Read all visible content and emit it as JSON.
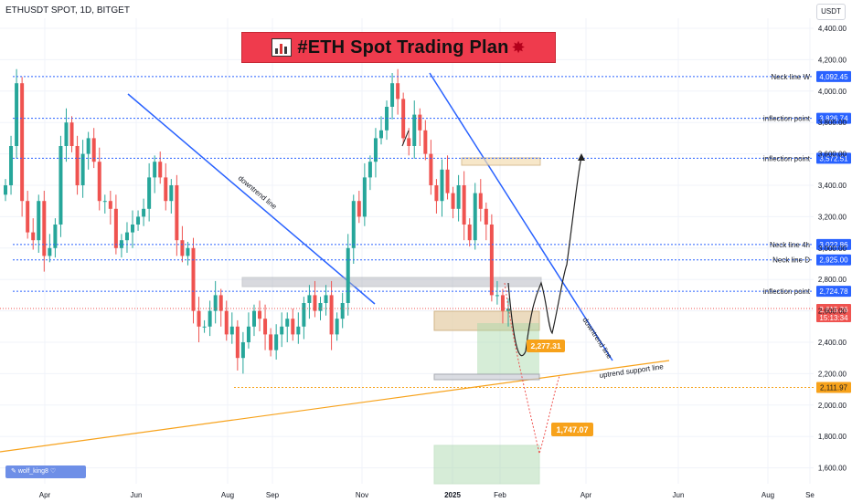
{
  "header": {
    "ticker": "ETHUSDT SPOT, 1D, BITGET",
    "currency": "USDT",
    "banner_title": "#ETH Spot Trading Plan",
    "author": "wolf_king8"
  },
  "colors": {
    "up": "#26a69a",
    "down": "#ef5350",
    "trendline": "#2962ff",
    "support": "#f7a21b",
    "banner": "#ef3b4d",
    "label_blue": "#2962ff",
    "label_orange": "#f7a21b"
  },
  "chart_data": {
    "type": "candlestick",
    "ylim": [
      1560,
      4500
    ],
    "x_ticks": [
      "Apr",
      "Jun",
      "Aug",
      "Sep",
      "Nov",
      "2025",
      "Feb",
      "Apr",
      "Jun",
      "Aug",
      "Se"
    ],
    "y_ticks": [
      "4,400.00",
      "4,200.00",
      "4,000.00",
      "3,800.00",
      "3,600.00",
      "3,400.00",
      "3,200.00",
      "3,000.00",
      "2,800.00",
      "2,600.00",
      "2,400.00",
      "2,200.00",
      "2,000.00",
      "1,800.00",
      "1,600.00"
    ],
    "y_tick_values": [
      4400,
      4200,
      4000,
      3800,
      3600,
      3400,
      3200,
      3000,
      2800,
      2600,
      2400,
      2200,
      2000,
      1800,
      1600
    ],
    "current_price": {
      "value": "2,615.26",
      "countdown": "15:13:34"
    },
    "level_2111": "2,111.97",
    "horizontal_levels": [
      {
        "label": "Neck line W",
        "value": "4,092.45"
      },
      {
        "label": "inflection point",
        "value": "3,826.74"
      },
      {
        "label": "inflection point",
        "value": "3,572.51"
      },
      {
        "label": "Neck line 4h",
        "value": "3,022.86"
      },
      {
        "label": "Neck line D",
        "value": "2,925.00"
      },
      {
        "label": "inflection point",
        "value": "2,724.78"
      }
    ],
    "annotations": [
      {
        "text": "downtrend line"
      },
      {
        "text": "downtrend line"
      },
      {
        "text": "uptrend support line"
      },
      {
        "text": "2,277.31"
      },
      {
        "text": "1,747.07"
      }
    ],
    "approx_daily_closes": [
      3400,
      3650,
      4050,
      3300,
      3100,
      3050,
      3300,
      2950,
      3000,
      3150,
      3650,
      3800,
      3650,
      3400,
      3600,
      3700,
      3550,
      3300,
      3300,
      3250,
      3000,
      3050,
      3100,
      3150,
      3200,
      3250,
      3450,
      3550,
      3450,
      3300,
      3400,
      3050,
      2950,
      3000,
      2600,
      2500,
      2500,
      2600,
      2700,
      2600,
      2450,
      2500,
      2300,
      2400,
      2500,
      2600,
      2550,
      2450,
      2350,
      2450,
      2500,
      2550,
      2450,
      2500,
      2650,
      2700,
      2600,
      2650,
      2700,
      2450,
      2550,
      2650,
      3000,
      3300,
      3200,
      3450,
      3550,
      3700,
      3750,
      3900,
      4050,
      3950,
      3700,
      3650,
      3850,
      3750,
      3600,
      3400,
      3300,
      3500,
      3350,
      3250,
      3400,
      3150,
      3050,
      3350,
      3250,
      3150,
      2700,
      2700,
      2600,
      2615
    ]
  }
}
